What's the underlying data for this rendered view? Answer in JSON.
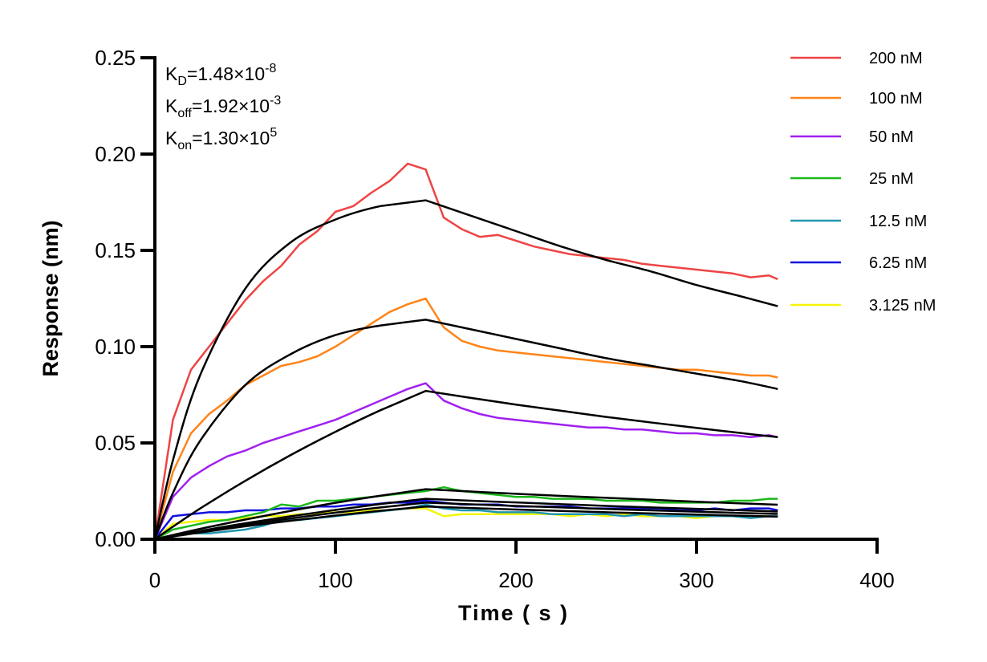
{
  "chart_data": {
    "type": "line",
    "title": "",
    "xlabel": "Time ( s )",
    "ylabel": "Response (nm)",
    "xlim": [
      0,
      400
    ],
    "ylim": [
      0,
      0.25
    ],
    "xticks": [
      "0",
      "100",
      "200",
      "300",
      "400"
    ],
    "yticks": [
      "0.00",
      "0.05",
      "0.10",
      "0.15",
      "0.20",
      "0.25"
    ],
    "grid": false,
    "legend_position": "right",
    "annotations": {
      "kd": {
        "label": "K",
        "sub": "D",
        "value": "=1.48×10",
        "exp": "-8"
      },
      "koff": {
        "label": "K",
        "sub": "off",
        "value": "=1.92×10",
        "exp": "-3"
      },
      "kon": {
        "label": "K",
        "sub": "on",
        "value": "=1.30×10",
        "exp": "5"
      }
    },
    "x": [
      0,
      10,
      20,
      30,
      40,
      50,
      60,
      70,
      80,
      90,
      100,
      110,
      120,
      130,
      140,
      150,
      160,
      170,
      180,
      190,
      200,
      210,
      220,
      230,
      240,
      250,
      260,
      270,
      280,
      290,
      300,
      310,
      320,
      330,
      340,
      345
    ],
    "series": [
      {
        "name": "200 nM",
        "color": "#ef4444",
        "values": [
          0,
          0.062,
          0.088,
          0.1,
          0.112,
          0.124,
          0.134,
          0.142,
          0.153,
          0.16,
          0.17,
          0.173,
          0.18,
          0.186,
          0.195,
          0.192,
          0.167,
          0.161,
          0.157,
          0.158,
          0.155,
          0.152,
          0.15,
          0.148,
          0.147,
          0.146,
          0.145,
          0.143,
          0.142,
          0.141,
          0.14,
          0.139,
          0.138,
          0.136,
          0.137,
          0.135
        ]
      },
      {
        "name": "100 nM",
        "color": "#ff8418",
        "values": [
          0,
          0.035,
          0.055,
          0.065,
          0.072,
          0.08,
          0.085,
          0.09,
          0.092,
          0.095,
          0.1,
          0.106,
          0.112,
          0.118,
          0.122,
          0.125,
          0.11,
          0.103,
          0.1,
          0.098,
          0.097,
          0.096,
          0.095,
          0.094,
          0.093,
          0.092,
          0.091,
          0.09,
          0.089,
          0.088,
          0.088,
          0.087,
          0.086,
          0.085,
          0.085,
          0.084
        ]
      },
      {
        "name": "50 nM",
        "color": "#a020f0",
        "values": [
          0,
          0.022,
          0.032,
          0.038,
          0.043,
          0.046,
          0.05,
          0.053,
          0.056,
          0.059,
          0.062,
          0.066,
          0.07,
          0.074,
          0.078,
          0.081,
          0.072,
          0.068,
          0.065,
          0.063,
          0.062,
          0.061,
          0.06,
          0.059,
          0.058,
          0.058,
          0.057,
          0.057,
          0.056,
          0.055,
          0.055,
          0.054,
          0.054,
          0.053,
          0.054,
          0.053
        ]
      },
      {
        "name": "25 nM",
        "color": "#1cb81c",
        "values": [
          0,
          0.005,
          0.007,
          0.009,
          0.01,
          0.012,
          0.014,
          0.018,
          0.017,
          0.02,
          0.02,
          0.021,
          0.022,
          0.023,
          0.024,
          0.025,
          0.027,
          0.025,
          0.024,
          0.023,
          0.022,
          0.022,
          0.021,
          0.021,
          0.021,
          0.02,
          0.02,
          0.02,
          0.019,
          0.019,
          0.019,
          0.019,
          0.02,
          0.02,
          0.021,
          0.021
        ]
      },
      {
        "name": "12.5 nM",
        "color": "#2196b0",
        "values": [
          0,
          0.002,
          0.003,
          0.003,
          0.004,
          0.005,
          0.007,
          0.01,
          0.01,
          0.011,
          0.012,
          0.013,
          0.014,
          0.015,
          0.016,
          0.018,
          0.016,
          0.015,
          0.015,
          0.014,
          0.014,
          0.014,
          0.013,
          0.013,
          0.013,
          0.013,
          0.012,
          0.013,
          0.012,
          0.012,
          0.012,
          0.012,
          0.012,
          0.011,
          0.012,
          0.012
        ]
      },
      {
        "name": "6.25 nM",
        "color": "#1010e0",
        "values": [
          0,
          0.012,
          0.013,
          0.014,
          0.014,
          0.015,
          0.015,
          0.016,
          0.016,
          0.017,
          0.017,
          0.018,
          0.018,
          0.019,
          0.019,
          0.02,
          0.019,
          0.018,
          0.018,
          0.018,
          0.017,
          0.017,
          0.017,
          0.017,
          0.016,
          0.016,
          0.016,
          0.016,
          0.016,
          0.015,
          0.015,
          0.016,
          0.015,
          0.016,
          0.016,
          0.015
        ]
      },
      {
        "name": "3.125 nM",
        "color": "#f5f50a",
        "values": [
          0,
          0.008,
          0.009,
          0.01,
          0.01,
          0.011,
          0.012,
          0.012,
          0.013,
          0.013,
          0.014,
          0.014,
          0.015,
          0.015,
          0.016,
          0.016,
          0.012,
          0.013,
          0.013,
          0.013,
          0.013,
          0.013,
          0.013,
          0.012,
          0.013,
          0.012,
          0.013,
          0.012,
          0.012,
          0.012,
          0.011,
          0.012,
          0.012,
          0.012,
          0.012,
          0.012
        ]
      }
    ],
    "fit_x": [
      0,
      10,
      25,
      50,
      75,
      100,
      125,
      150,
      175,
      200,
      225,
      250,
      275,
      300,
      325,
      345
    ],
    "fits": [
      {
        "color": "#000000",
        "values": [
          0,
          0.041,
          0.085,
          0.13,
          0.154,
          0.166,
          0.173,
          0.176,
          0.168,
          0.16,
          0.152,
          0.145,
          0.139,
          0.132,
          0.126,
          0.121
        ]
      },
      {
        "color": "#000000",
        "values": [
          0,
          0.024,
          0.051,
          0.08,
          0.096,
          0.106,
          0.111,
          0.114,
          0.109,
          0.104,
          0.099,
          0.094,
          0.09,
          0.086,
          0.082,
          0.078
        ]
      },
      {
        "color": "#000000",
        "values": [
          0,
          0.0065,
          0.0159,
          0.0303,
          0.0436,
          0.0558,
          0.067,
          0.077,
          0.0734,
          0.0699,
          0.0667,
          0.0635,
          0.0606,
          0.0578,
          0.0551,
          0.053
        ]
      },
      {
        "color": "#000000",
        "values": [
          0,
          0.0022,
          0.0054,
          0.0102,
          0.0147,
          0.0189,
          0.0226,
          0.026,
          0.0248,
          0.0236,
          0.0225,
          0.0215,
          0.0205,
          0.0195,
          0.0186,
          0.0179
        ]
      },
      {
        "color": "#000000",
        "values": [
          0,
          0.0018,
          0.0043,
          0.0083,
          0.0119,
          0.0152,
          0.0183,
          0.021,
          0.02,
          0.0191,
          0.0182,
          0.0173,
          0.0165,
          0.0158,
          0.015,
          0.0144
        ]
      },
      {
        "color": "#000000",
        "values": [
          0,
          0.0016,
          0.0039,
          0.0075,
          0.0108,
          0.0138,
          0.0165,
          0.019,
          0.0181,
          0.0173,
          0.0165,
          0.0157,
          0.015,
          0.0143,
          0.0136,
          0.0131
        ]
      },
      {
        "color": "#000000",
        "values": [
          0,
          0.0014,
          0.0035,
          0.0067,
          0.0096,
          0.0123,
          0.0148,
          0.017,
          0.0162,
          0.0154,
          0.0147,
          0.014,
          0.0134,
          0.0128,
          0.0122,
          0.0117
        ]
      }
    ]
  }
}
